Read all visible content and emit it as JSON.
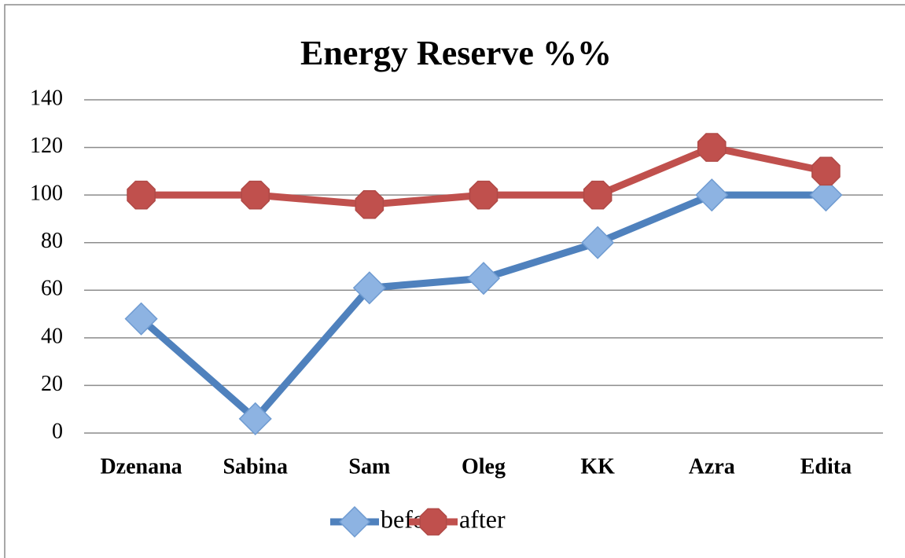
{
  "chart_data": {
    "type": "line",
    "title": "Energy Reserve %%",
    "categories": [
      "Dzenana",
      "Sabina",
      "Sam",
      "Oleg",
      "KK",
      "Azra",
      "Edita"
    ],
    "series": [
      {
        "name": "before",
        "color": "#4f81bd",
        "marker": "diamond",
        "values": [
          48,
          6,
          61,
          65,
          80,
          100,
          100
        ]
      },
      {
        "name": "after",
        "color": "#c0504d",
        "marker": "octagon",
        "values": [
          100,
          100,
          96,
          100,
          100,
          120,
          110
        ]
      }
    ],
    "ylim": [
      0,
      140
    ],
    "yticks": [
      0,
      20,
      40,
      60,
      80,
      100,
      120,
      140
    ],
    "grid": true,
    "legend": "bottom"
  }
}
